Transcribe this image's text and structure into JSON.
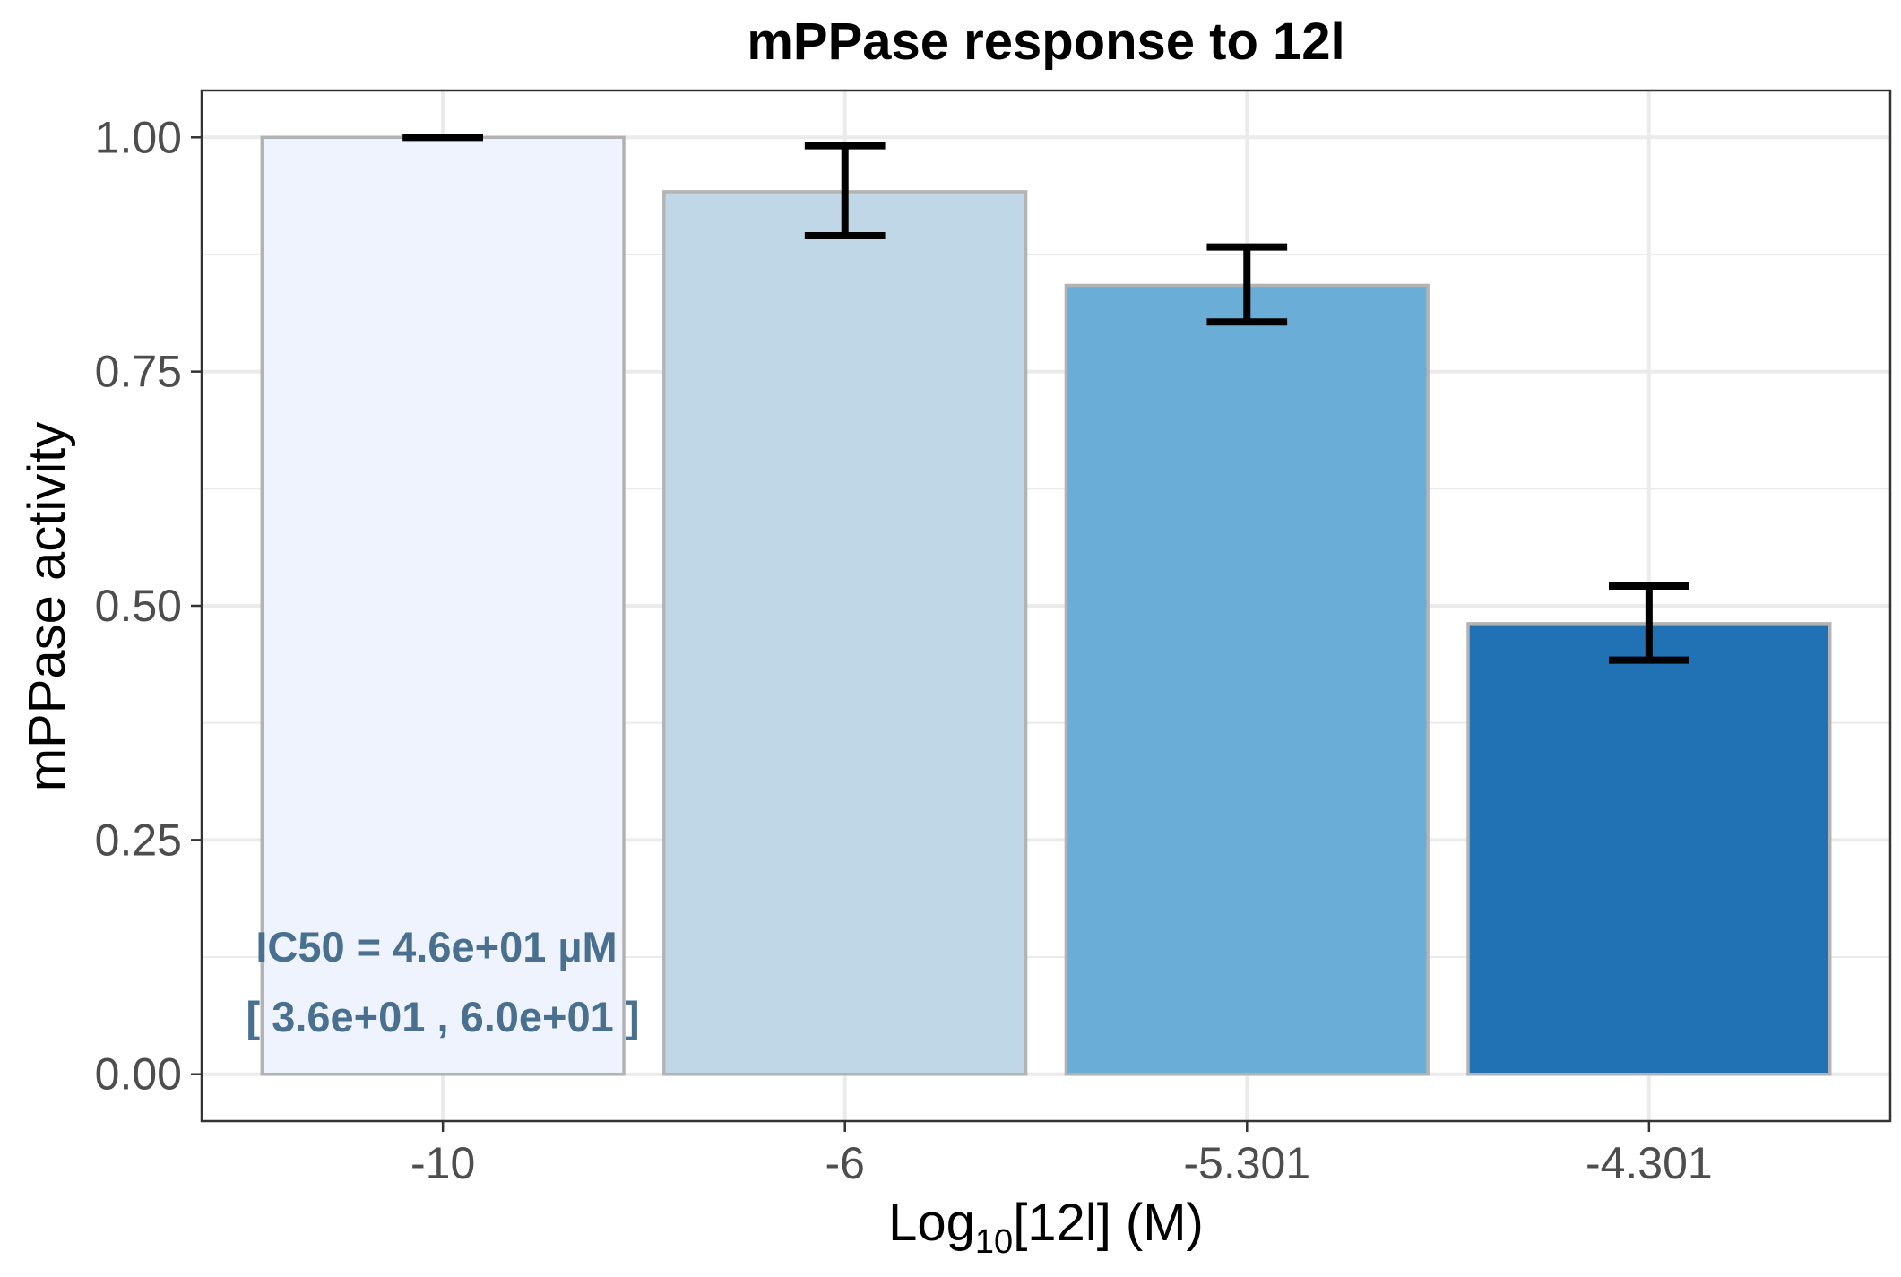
{
  "colors": {
    "bar_fills": [
      "#eef3fe",
      "#bfd7e6",
      "#6aaed7",
      "#2171b5"
    ],
    "bar_border": "#b3b3b3",
    "errorbar": "#000000",
    "grid": "#ebebeb",
    "panel_border": "#333333",
    "annotation": "#4a7090",
    "tick_label": "#4d4d4d"
  },
  "chart_data": {
    "type": "bar",
    "title": "mPPase response to 12l",
    "xlabel": {
      "prefix": "Log",
      "subscript": "10",
      "suffix": "[12l] (M)"
    },
    "ylabel": "mPPase activity",
    "categories": [
      "-10",
      "-6",
      "-5.301",
      "-4.301"
    ],
    "values": [
      1.0,
      0.942,
      0.842,
      0.481
    ],
    "error_low": [
      1.0,
      0.895,
      0.803,
      0.442
    ],
    "error_high": [
      1.0,
      0.991,
      0.883,
      0.521
    ],
    "ylim": [
      -0.05,
      1.05
    ],
    "yticks": [
      0.0,
      0.25,
      0.5,
      0.75,
      1.0
    ],
    "ytick_labels": [
      "0.00",
      "0.25",
      "0.50",
      "0.75",
      "1.00"
    ],
    "grid": true,
    "legend": "none",
    "annotation": {
      "line1": "IC50 = 4.6e+01 µM",
      "line2": "[ 3.6e+01 , 6.0e+01 ]"
    }
  }
}
